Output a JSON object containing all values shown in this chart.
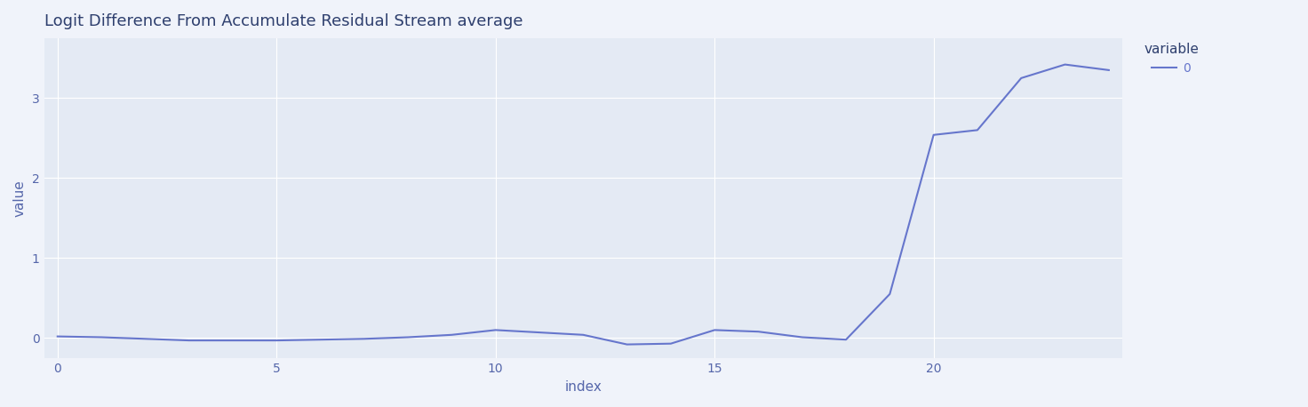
{
  "title": "Logit Difference From Accumulate Residual Stream average",
  "xlabel": "index",
  "ylabel": "value",
  "x": [
    0,
    1,
    2,
    3,
    4,
    5,
    6,
    7,
    8,
    9,
    10,
    11,
    12,
    13,
    14,
    15,
    16,
    17,
    18,
    19,
    20,
    21,
    22,
    23,
    24
  ],
  "y": [
    0.02,
    0.01,
    -0.01,
    -0.03,
    -0.03,
    -0.03,
    -0.02,
    -0.01,
    0.01,
    0.04,
    0.1,
    0.07,
    0.04,
    -0.08,
    -0.07,
    0.1,
    0.08,
    0.01,
    -0.02,
    0.55,
    2.54,
    2.6,
    3.25,
    3.42,
    3.35
  ],
  "line_color": "#6676cc",
  "background_color": "#e4eaf4",
  "legend_label": "0",
  "legend_title": "variable",
  "title_color": "#2e3f6e",
  "axis_label_color": "#5566aa",
  "tick_color": "#5566aa",
  "grid_color": "#ffffff",
  "title_fontsize": 13,
  "axis_label_fontsize": 11,
  "tick_fontsize": 10,
  "yticks": [
    0,
    1,
    2,
    3
  ],
  "xticks": [
    0,
    5,
    10,
    15,
    20
  ],
  "ylim": [
    -0.25,
    3.75
  ],
  "xlim": [
    -0.3,
    24.3
  ]
}
